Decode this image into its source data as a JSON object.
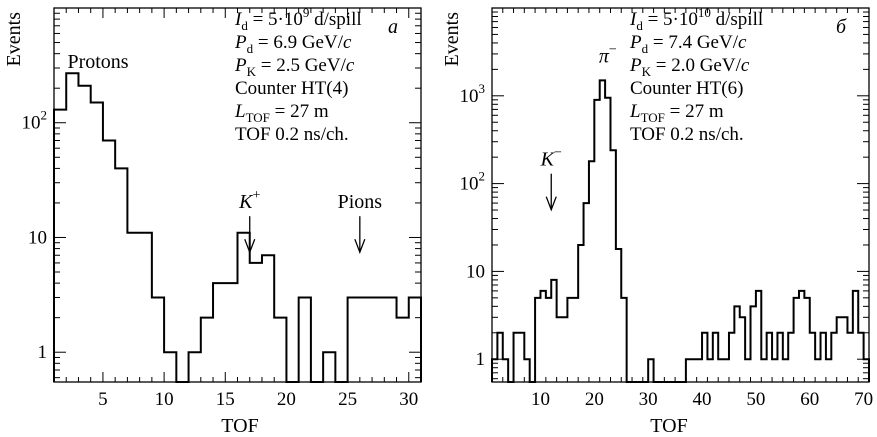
{
  "chart_data": [
    {
      "type": "histogram",
      "panel_label": "а",
      "ylabel": "Events",
      "xlabel": "TOF",
      "x_range": [
        1,
        31
      ],
      "y_log": true,
      "y_range": [
        0.55,
        1000
      ],
      "x_ticks": [
        5,
        10,
        15,
        20,
        25,
        30
      ],
      "y_ticks": [
        {
          "v": 1,
          "label": "1"
        },
        {
          "v": 10,
          "label": "10"
        },
        {
          "v": 100,
          "label": "10",
          "sup": "2"
        }
      ],
      "bin_edges": [
        1,
        2,
        3,
        4,
        5,
        6,
        7,
        8,
        9,
        10,
        11,
        12,
        13,
        14,
        15,
        16,
        17,
        18,
        19,
        20,
        21,
        22,
        23,
        24,
        25,
        26,
        27,
        28,
        29,
        30,
        31
      ],
      "counts": [
        130,
        270,
        210,
        150,
        70,
        40,
        11,
        11,
        3,
        1,
        0,
        1,
        2,
        4,
        4,
        11,
        6,
        7,
        2,
        0,
        3,
        0,
        1,
        0,
        3,
        3,
        3,
        3,
        2,
        3
      ],
      "info_lines": [
        {
          "main": "I",
          "sub": "d",
          "rest": " = 5·10",
          "sup": "9",
          "tail": " d/spill"
        },
        {
          "main": "P",
          "sub": "d",
          "rest": " = 6.9 GeV/",
          "italic_tail": "c"
        },
        {
          "main": "P",
          "sub": "K",
          "rest": " = 2.5 GeV/",
          "italic_tail": "c"
        },
        {
          "plain": "Counter HT(4)"
        },
        {
          "main": "L",
          "sub": "TOF",
          "rest": "  = 27 m"
        },
        {
          "plain": "TOF 0.2 ns/ch."
        }
      ],
      "annotations": [
        {
          "text": "Protons",
          "x": 4.6,
          "y": 300
        },
        {
          "text": "K",
          "sup": "+",
          "x": 17,
          "y": 18,
          "arrow_to": 12
        },
        {
          "text": "Pions",
          "x": 26,
          "y": 18,
          "arrow_to": 12
        }
      ]
    },
    {
      "type": "histogram",
      "panel_label": "б",
      "ylabel": "Events",
      "xlabel": "TOF",
      "x_range": [
        1,
        71
      ],
      "y_log": true,
      "y_range": [
        0.55,
        10000
      ],
      "x_ticks": [
        10,
        20,
        30,
        40,
        50,
        60,
        70
      ],
      "y_ticks": [
        {
          "v": 1,
          "label": "1"
        },
        {
          "v": 10,
          "label": "10"
        },
        {
          "v": 100,
          "label": "10",
          "sup": "2"
        },
        {
          "v": 1000,
          "label": "10",
          "sup": "3"
        }
      ],
      "bin_edges": [
        1,
        2,
        3,
        4,
        5,
        6,
        7,
        8,
        9,
        10,
        11,
        12,
        13,
        14,
        15,
        16,
        17,
        18,
        19,
        20,
        21,
        22,
        23,
        24,
        25,
        26,
        27,
        28,
        29,
        30,
        31,
        32,
        33,
        34,
        35,
        36,
        37,
        38,
        39,
        40,
        41,
        42,
        43,
        44,
        45,
        46,
        47,
        48,
        49,
        50,
        51,
        52,
        53,
        54,
        55,
        56,
        57,
        58,
        59,
        60,
        61,
        62,
        63,
        64,
        65,
        66,
        67,
        68,
        69,
        70,
        71
      ],
      "counts": [
        1,
        2,
        1,
        0,
        2,
        2,
        1,
        0,
        5,
        6,
        5,
        8,
        3,
        3,
        5,
        5,
        20,
        60,
        180,
        900,
        1500,
        950,
        240,
        18,
        5,
        0,
        0,
        0,
        0,
        1,
        0,
        0,
        0,
        0,
        0,
        0,
        1,
        1,
        1,
        2,
        1,
        2,
        1,
        1,
        2,
        4,
        3,
        1,
        4,
        6,
        1,
        2,
        1,
        2,
        1,
        2,
        5,
        6,
        5,
        2,
        1,
        2,
        1,
        2,
        3,
        3,
        2,
        6,
        2,
        1
      ],
      "info_lines": [
        {
          "main": "I",
          "sub": "d",
          "rest": " = 5·10",
          "sup": "10",
          "tail": " d/spill"
        },
        {
          "main": "P",
          "sub": "d",
          "rest": " = 7.4 GeV/",
          "italic_tail": "c"
        },
        {
          "main": "P",
          "sub": "K",
          "rest": " = 2.0 GeV/",
          "italic_tail": "c"
        },
        {
          "plain": "Counter HT(6)"
        },
        {
          "main": "L",
          "sub": "TOF",
          "rest": "  = 27 m"
        },
        {
          "plain": "TOF 0.2 ns/ch."
        }
      ],
      "annotations": [
        {
          "text": "π",
          "sup": "−",
          "x": 22.5,
          "y": 2400
        },
        {
          "text": "K",
          "sup": "−",
          "x": 12,
          "y": 160,
          "arrow_to": 120
        }
      ]
    }
  ]
}
